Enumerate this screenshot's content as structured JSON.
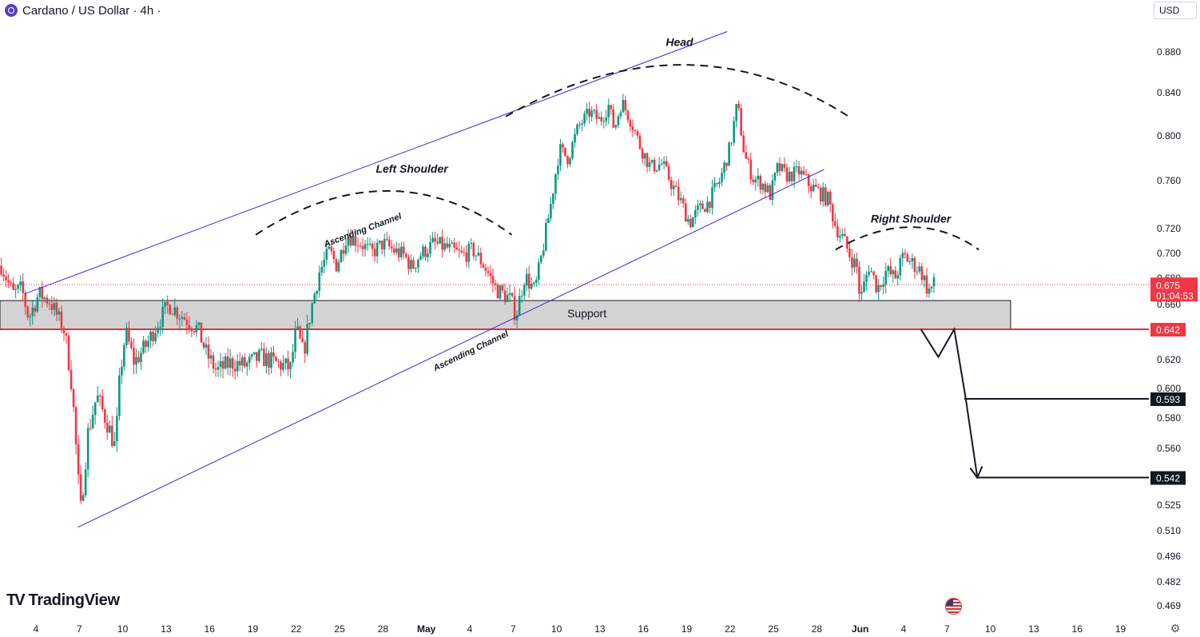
{
  "header": {
    "title": "Cardano / US Dollar · 4h ·"
  },
  "currency_button": "USD",
  "branding": {
    "mark": "TV",
    "name": "TradingView"
  },
  "icons": {
    "symbol": "cardano-coin-icon",
    "settings": "gear-icon",
    "flag": "us-flag-icon"
  },
  "colors": {
    "up": "#089981",
    "down": "#f23645",
    "channel": "#3f26e0",
    "support_line": "#e0303f",
    "support_zone": "#d3d3d3",
    "price_tag": "#f23645"
  },
  "annotations": {
    "head": "Head",
    "left_shoulder": "Left Shoulder",
    "right_shoulder": "Right Shoulder",
    "support": "Support",
    "channel_upper": "Ascending Channel",
    "channel_lower": "Ascending Channel"
  },
  "price_labels": {
    "current": "0.675",
    "countdown": "01:04:53",
    "support": "0.642",
    "target1": "0.593",
    "target2": "0.542"
  },
  "chart_data": {
    "type": "candlestick",
    "title": "Cardano / US Dollar · 4h",
    "interval": "4h",
    "y_ticks": [
      "0.880",
      "0.840",
      "0.800",
      "0.760",
      "0.720",
      "0.700",
      "0.680",
      "0.660",
      "0.620",
      "0.600",
      "0.580",
      "0.560",
      "0.525",
      "0.510",
      "0.496",
      "0.482",
      "0.469"
    ],
    "x_ticks": [
      {
        "label": "4",
        "day": 0
      },
      {
        "label": "7",
        "day": 3
      },
      {
        "label": "10",
        "day": 6
      },
      {
        "label": "13",
        "day": 9
      },
      {
        "label": "16",
        "day": 12
      },
      {
        "label": "19",
        "day": 15
      },
      {
        "label": "22",
        "day": 18
      },
      {
        "label": "25",
        "day": 21
      },
      {
        "label": "28",
        "day": 24
      },
      {
        "label": "May",
        "day": 27
      },
      {
        "label": "4",
        "day": 30
      },
      {
        "label": "7",
        "day": 33
      },
      {
        "label": "10",
        "day": 36
      },
      {
        "label": "13",
        "day": 39
      },
      {
        "label": "16",
        "day": 42
      },
      {
        "label": "19",
        "day": 45
      },
      {
        "label": "22",
        "day": 48
      },
      {
        "label": "25",
        "day": 51
      },
      {
        "label": "28",
        "day": 54
      },
      {
        "label": "Jun",
        "day": 57
      },
      {
        "label": "4",
        "day": 60
      },
      {
        "label": "7",
        "day": 63
      },
      {
        "label": "10",
        "day": 66
      },
      {
        "label": "13",
        "day": 69
      },
      {
        "label": "16",
        "day": 72
      },
      {
        "label": "19",
        "day": 75
      }
    ],
    "close_path": [
      {
        "day": -2.4,
        "p": 0.69
      },
      {
        "day": -1.6,
        "p": 0.668
      },
      {
        "day": -1.0,
        "p": 0.672
      },
      {
        "day": -0.5,
        "p": 0.65
      },
      {
        "day": 0.2,
        "p": 0.668
      },
      {
        "day": 1.0,
        "p": 0.662
      },
      {
        "day": 2.0,
        "p": 0.64
      },
      {
        "day": 2.5,
        "p": 0.6
      },
      {
        "day": 2.9,
        "p": 0.542
      },
      {
        "day": 3.1,
        "p": 0.522
      },
      {
        "day": 3.6,
        "p": 0.57
      },
      {
        "day": 4.2,
        "p": 0.595
      },
      {
        "day": 5.0,
        "p": 0.575
      },
      {
        "day": 5.5,
        "p": 0.56
      },
      {
        "day": 5.8,
        "p": 0.608
      },
      {
        "day": 6.2,
        "p": 0.64
      },
      {
        "day": 6.8,
        "p": 0.618
      },
      {
        "day": 7.6,
        "p": 0.63
      },
      {
        "day": 8.5,
        "p": 0.648
      },
      {
        "day": 9.2,
        "p": 0.66
      },
      {
        "day": 10.2,
        "p": 0.651
      },
      {
        "day": 11.2,
        "p": 0.642
      },
      {
        "day": 11.8,
        "p": 0.624
      },
      {
        "day": 12.5,
        "p": 0.612
      },
      {
        "day": 13.5,
        "p": 0.618
      },
      {
        "day": 14.5,
        "p": 0.616
      },
      {
        "day": 15.5,
        "p": 0.622
      },
      {
        "day": 16.5,
        "p": 0.618
      },
      {
        "day": 17.6,
        "p": 0.614
      },
      {
        "day": 18.0,
        "p": 0.642
      },
      {
        "day": 18.5,
        "p": 0.624
      },
      {
        "day": 19.0,
        "p": 0.655
      },
      {
        "day": 19.6,
        "p": 0.685
      },
      {
        "day": 20.3,
        "p": 0.702
      },
      {
        "day": 20.8,
        "p": 0.69
      },
      {
        "day": 21.5,
        "p": 0.715
      },
      {
        "day": 22.5,
        "p": 0.708
      },
      {
        "day": 23.2,
        "p": 0.7
      },
      {
        "day": 24.0,
        "p": 0.708
      },
      {
        "day": 24.8,
        "p": 0.702
      },
      {
        "day": 25.5,
        "p": 0.698
      },
      {
        "day": 26.0,
        "p": 0.688
      },
      {
        "day": 26.5,
        "p": 0.698
      },
      {
        "day": 27.5,
        "p": 0.708
      },
      {
        "day": 28.5,
        "p": 0.704
      },
      {
        "day": 29.5,
        "p": 0.698
      },
      {
        "day": 30.2,
        "p": 0.703
      },
      {
        "day": 31.0,
        "p": 0.69
      },
      {
        "day": 31.8,
        "p": 0.672
      },
      {
        "day": 32.8,
        "p": 0.664
      },
      {
        "day": 33.2,
        "p": 0.652
      },
      {
        "day": 33.8,
        "p": 0.682
      },
      {
        "day": 34.5,
        "p": 0.67
      },
      {
        "day": 35.0,
        "p": 0.7
      },
      {
        "day": 35.6,
        "p": 0.74
      },
      {
        "day": 36.2,
        "p": 0.788
      },
      {
        "day": 36.8,
        "p": 0.78
      },
      {
        "day": 37.5,
        "p": 0.808
      },
      {
        "day": 38.3,
        "p": 0.822
      },
      {
        "day": 39.0,
        "p": 0.814
      },
      {
        "day": 39.6,
        "p": 0.828
      },
      {
        "day": 40.0,
        "p": 0.806
      },
      {
        "day": 40.5,
        "p": 0.832
      },
      {
        "day": 41.2,
        "p": 0.812
      },
      {
        "day": 41.8,
        "p": 0.79
      },
      {
        "day": 42.5,
        "p": 0.772
      },
      {
        "day": 43.3,
        "p": 0.775
      },
      {
        "day": 44.0,
        "p": 0.756
      },
      {
        "day": 44.6,
        "p": 0.742
      },
      {
        "day": 45.2,
        "p": 0.725
      },
      {
        "day": 45.8,
        "p": 0.735
      },
      {
        "day": 46.5,
        "p": 0.742
      },
      {
        "day": 47.3,
        "p": 0.76
      },
      {
        "day": 48.0,
        "p": 0.79
      },
      {
        "day": 48.5,
        "p": 0.83
      },
      {
        "day": 49.0,
        "p": 0.782
      },
      {
        "day": 49.6,
        "p": 0.762
      },
      {
        "day": 50.2,
        "p": 0.758
      },
      {
        "day": 50.8,
        "p": 0.748
      },
      {
        "day": 51.3,
        "p": 0.772
      },
      {
        "day": 52.0,
        "p": 0.764
      },
      {
        "day": 52.8,
        "p": 0.768
      },
      {
        "day": 53.5,
        "p": 0.756
      },
      {
        "day": 54.2,
        "p": 0.75
      },
      {
        "day": 54.8,
        "p": 0.744
      },
      {
        "day": 55.3,
        "p": 0.722
      },
      {
        "day": 55.8,
        "p": 0.712
      },
      {
        "day": 56.3,
        "p": 0.698
      },
      {
        "day": 56.8,
        "p": 0.688
      },
      {
        "day": 57.0,
        "p": 0.662
      },
      {
        "day": 57.6,
        "p": 0.69
      },
      {
        "day": 58.2,
        "p": 0.672
      },
      {
        "day": 58.8,
        "p": 0.686
      },
      {
        "day": 59.4,
        "p": 0.68
      },
      {
        "day": 60.0,
        "p": 0.698
      },
      {
        "day": 60.6,
        "p": 0.692
      },
      {
        "day": 61.2,
        "p": 0.686
      },
      {
        "day": 61.7,
        "p": 0.67
      },
      {
        "day": 62.1,
        "p": 0.675
      }
    ],
    "current_price": 0.675,
    "support_level": 0.642,
    "support_zone": {
      "low": 0.642,
      "high": 0.663
    },
    "targets": [
      0.593,
      0.542
    ],
    "ascending_channel": {
      "upper": [
        {
          "day": -0.8,
          "p": 0.668
        },
        {
          "day": 47.8,
          "p": 0.9
        }
      ],
      "lower": [
        {
          "day": 2.9,
          "p": 0.512
        },
        {
          "day": 54.5,
          "p": 0.77
        }
      ]
    },
    "pattern": "Head and Shoulders"
  }
}
